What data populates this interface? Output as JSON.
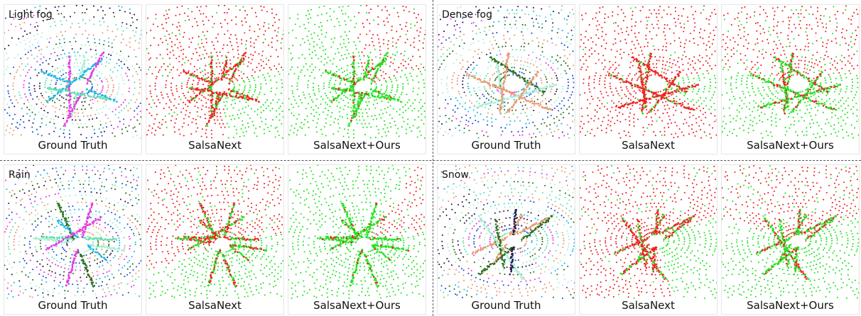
{
  "colors": {
    "gt_palette": [
      "#1fb8e6",
      "#e63be6",
      "#2b1a4a",
      "#62dfb0",
      "#a6f0d6",
      "#e69a6e",
      "#2c6e1c",
      "#1a4fd6"
    ],
    "error": "#ee2222",
    "correct": "#22e422"
  },
  "rows": [
    {
      "groups": [
        {
          "condition": "Light fog",
          "panels": [
            {
              "kind": "gt",
              "caption": "Ground Truth",
              "correct_share": 0
            },
            {
              "kind": "pred",
              "caption": "SalsaNext",
              "correct_share": 0.3
            },
            {
              "kind": "pred",
              "caption": "SalsaNext+Ours",
              "correct_share": 0.8
            }
          ]
        },
        {
          "condition": "Dense fog",
          "panels": [
            {
              "kind": "gt",
              "caption": "Ground Truth",
              "correct_share": 0
            },
            {
              "kind": "pred",
              "caption": "SalsaNext",
              "correct_share": 0.15
            },
            {
              "kind": "pred",
              "caption": "SalsaNext+Ours",
              "correct_share": 0.6
            }
          ]
        }
      ]
    },
    {
      "groups": [
        {
          "condition": "Rain",
          "panels": [
            {
              "kind": "gt",
              "caption": "Ground Truth",
              "correct_share": 0
            },
            {
              "kind": "pred",
              "caption": "SalsaNext",
              "correct_share": 0.45
            },
            {
              "kind": "pred",
              "caption": "SalsaNext+Ours",
              "correct_share": 0.85
            }
          ]
        },
        {
          "condition": "Snow",
          "panels": [
            {
              "kind": "gt",
              "caption": "Ground Truth",
              "correct_share": 0
            },
            {
              "kind": "pred",
              "caption": "SalsaNext",
              "correct_share": 0.3
            },
            {
              "kind": "pred",
              "caption": "SalsaNext+Ours",
              "correct_share": 0.65
            }
          ]
        }
      ]
    }
  ]
}
